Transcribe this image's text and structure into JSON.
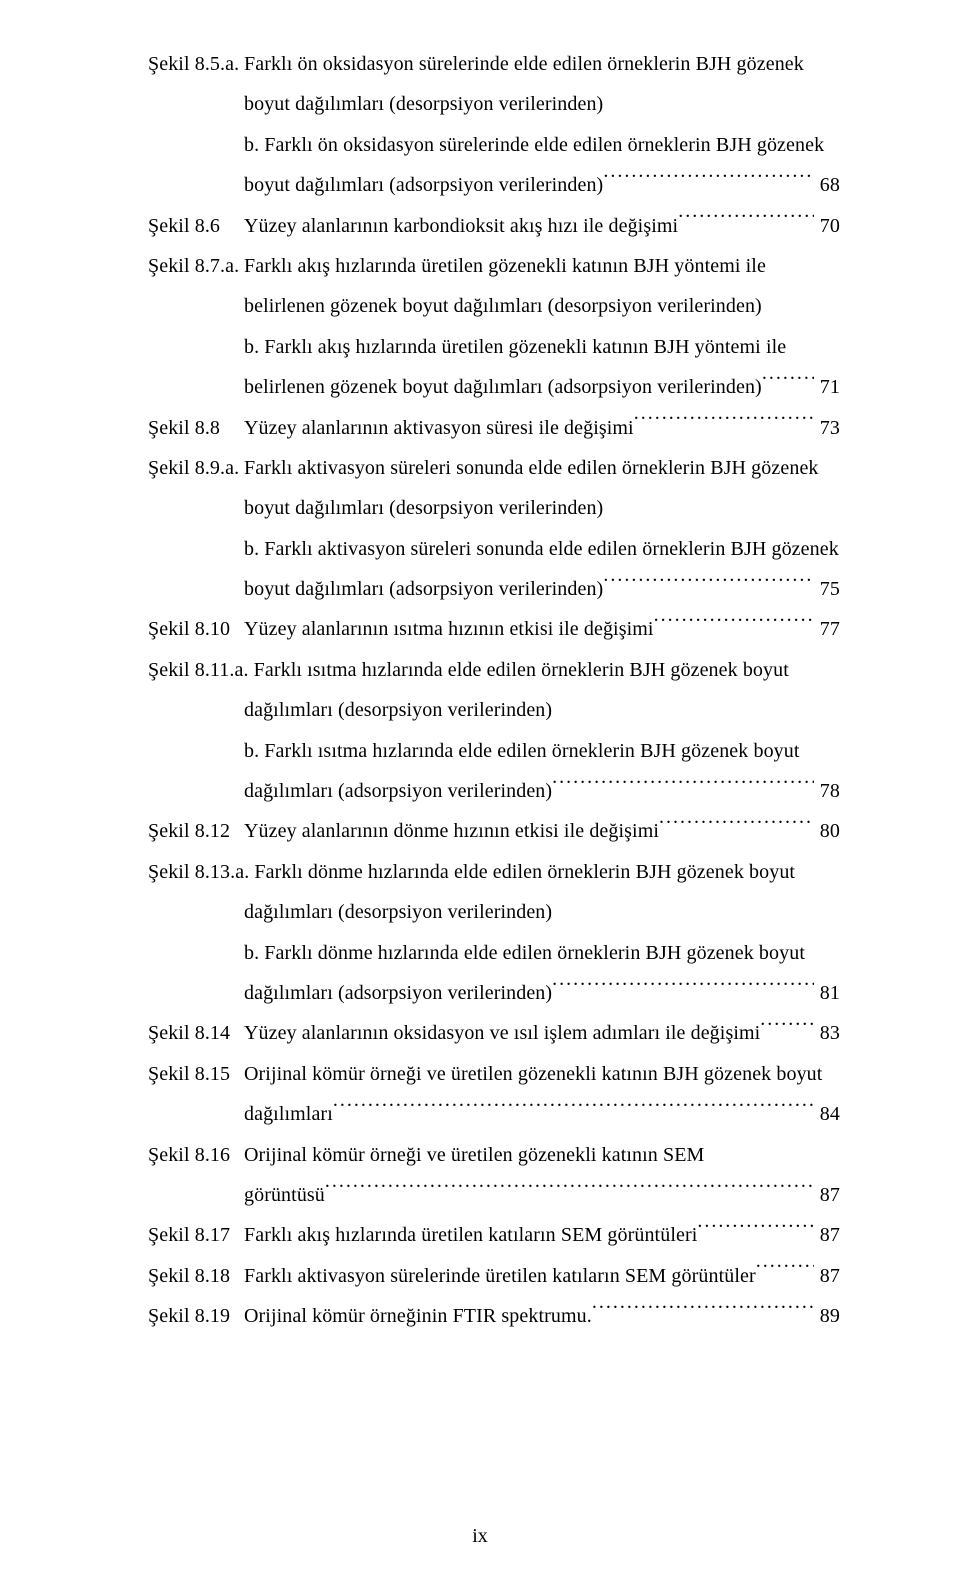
{
  "page": {
    "footer": "ix",
    "text_color": "#000000",
    "background_color": "#ffffff",
    "font_family": "Times New Roman",
    "base_font_size_pt": 12,
    "line_height": 2.0,
    "entries": [
      {
        "label": "Şekil 8.5.a.",
        "line1": "Farklı ön oksidasyon sürelerinde elde edilen örneklerin BJH gözenek",
        "line2": "boyut dağılımları (desorpsiyon verilerinden)",
        "b_line1": "b. Farklı ön oksidasyon sürelerinde elde edilen örneklerin BJH gözenek",
        "b_line2_text": "boyut dağılımları (adsorpsiyon verilerinden)",
        "page": "68"
      },
      {
        "label": "Şekil 8.6",
        "text": "Yüzey alanlarının karbondioksit akış hızı ile değişimi",
        "page": "70"
      },
      {
        "label": "Şekil 8.7.a.",
        "line1": "Farklı akış hızlarında üretilen gözenekli katının BJH yöntemi ile",
        "line2": "belirlenen gözenek boyut dağılımları (desorpsiyon verilerinden)",
        "b_line1": "b. Farklı akış hızlarında üretilen gözenekli katının BJH yöntemi ile",
        "b_line2_text": "belirlenen gözenek boyut dağılımları (adsorpsiyon verilerinden)",
        "page": "71"
      },
      {
        "label": "Şekil 8.8",
        "text": "Yüzey alanlarının aktivasyon süresi ile değişimi",
        "page": "73"
      },
      {
        "label": "Şekil 8.9.a.",
        "line1": "Farklı aktivasyon süreleri sonunda elde edilen örneklerin BJH gözenek",
        "line2": "boyut dağılımları (desorpsiyon verilerinden)",
        "b_line1": "b. Farklı aktivasyon süreleri sonunda elde edilen örneklerin BJH gözenek",
        "b_line2_text": "boyut dağılımları (adsorpsiyon verilerinden)",
        "page": "75"
      },
      {
        "label": "Şekil 8.10",
        "text": "Yüzey alanlarının ısıtma hızının etkisi ile değişimi",
        "page": "77"
      },
      {
        "label": "Şekil 8.11.a.",
        "line1_full": "Şekil 8.11.a. Farklı ısıtma hızlarında elde edilen örneklerin BJH gözenek boyut",
        "line2": "dağılımları (desorpsiyon verilerinden)",
        "b_line1": "b. Farklı ısıtma hızlarında elde edilen örneklerin BJH gözenek boyut",
        "b_line2_text": "dağılımları (adsorpsiyon verilerinden)",
        "page": "78"
      },
      {
        "label": "Şekil 8.12",
        "text": "Yüzey alanlarının dönme hızının etkisi ile değişimi",
        "page": "80"
      },
      {
        "label": "Şekil 8.13.a.",
        "line1_full": "Şekil 8.13.a. Farklı dönme hızlarında elde edilen örneklerin BJH gözenek boyut",
        "line2": "dağılımları (desorpsiyon verilerinden)",
        "b_line1": "b. Farklı dönme hızlarında elde edilen örneklerin BJH gözenek boyut",
        "b_line2_text": "dağılımları (adsorpsiyon verilerinden)",
        "page": "81"
      },
      {
        "label": "Şekil 8.14",
        "text": "Yüzey alanlarının oksidasyon ve ısıl işlem adımları ile değişimi",
        "page": "83"
      },
      {
        "label": "Şekil 8.15",
        "line1": "Orijinal kömür örneği ve üretilen gözenekli katının BJH gözenek boyut",
        "line2_text": "dağılımları",
        "page": "84"
      },
      {
        "label": "Şekil 8.16",
        "line1": "Orijinal kömür örneği ve üretilen gözenekli katının SEM",
        "line2_text": "görüntüsü",
        "page": "87"
      },
      {
        "label": "Şekil 8.17",
        "text": "Farklı akış hızlarında üretilen katıların SEM görüntüleri",
        "page": "87"
      },
      {
        "label": "Şekil 8.18",
        "text": "Farklı aktivasyon sürelerinde üretilen katıların SEM görüntüler",
        "page": "87"
      },
      {
        "label": "Şekil 8.19",
        "text": "Orijinal kömür örneğinin FTIR spektrumu.",
        "page": "89"
      }
    ]
  }
}
